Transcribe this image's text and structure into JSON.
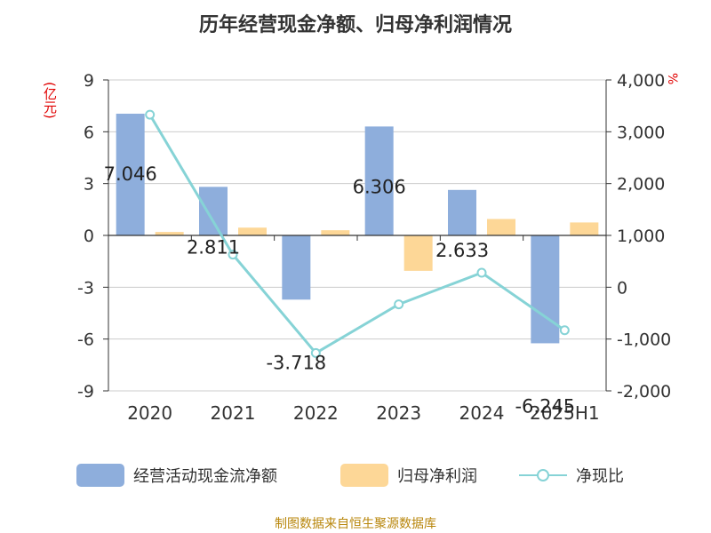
{
  "title": "历年经营现金净额、归母净利润情况",
  "unit_left": "(亿元)",
  "unit_right": "%",
  "source": "制图数据来自恒生聚源数据库",
  "colors": {
    "bar1": "#8eaedc",
    "bar2": "#fdd797",
    "line": "#86d3d6",
    "grid": "#cccccc",
    "axis": "#333333",
    "unit": "#e00000",
    "source": "#b8860b"
  },
  "chart_data": {
    "type": "bar",
    "categories": [
      "2020",
      "2021",
      "2022",
      "2023",
      "2024",
      "2025H1"
    ],
    "series": [
      {
        "name": "经营活动现金流净额",
        "type": "bar",
        "axis": "left",
        "values": [
          7.046,
          2.811,
          -3.718,
          6.306,
          2.633,
          -6.245
        ],
        "labels": [
          "7.046",
          "2.811",
          "-3.718",
          "6.306",
          "2.633",
          "-6.245"
        ]
      },
      {
        "name": "归母净利润",
        "type": "bar",
        "axis": "left",
        "values": [
          0.2,
          0.45,
          0.3,
          -2.05,
          0.95,
          0.75
        ]
      },
      {
        "name": "净现比",
        "type": "line",
        "axis": "right",
        "values": [
          3330,
          630,
          -1270,
          -330,
          280,
          -830
        ]
      }
    ],
    "left_axis": {
      "range": [
        -9,
        9
      ],
      "ticks": [
        "9",
        "6",
        "3",
        "0",
        "-3",
        "-6",
        "-9"
      ],
      "tick_values": [
        9,
        6,
        3,
        0,
        -3,
        -6,
        -9
      ]
    },
    "right_axis": {
      "range": [
        -2000,
        4000
      ],
      "ticks": [
        "4,000",
        "3,000",
        "2,000",
        "1,000",
        "0",
        "-1,000",
        "-2,000"
      ],
      "tick_values": [
        4000,
        3000,
        2000,
        1000,
        0,
        -1000,
        -2000
      ]
    },
    "grid": true,
    "legend_position": "bottom"
  }
}
